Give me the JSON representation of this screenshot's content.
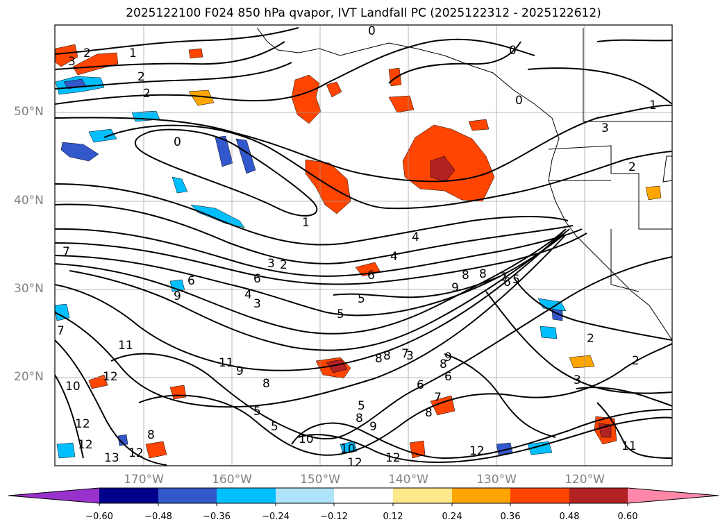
{
  "title": "2025122100 F024 850 hPa qvapor, IVT Landfall PC (2025122312 - 2025122612)",
  "lat_labels": [
    "50°N",
    "40°N",
    "30°N",
    "20°N"
  ],
  "lon_labels": [
    "170°W",
    "160°W",
    "150°W",
    "140°W",
    "130°W",
    "120°W"
  ],
  "colorbar": {
    "ticks": [
      "−0.60",
      "−0.48",
      "−0.36",
      "−0.24",
      "−0.12",
      "0.12",
      "0.24",
      "0.36",
      "0.48",
      "0.60"
    ],
    "colors": [
      "#9932cc",
      "#00008b",
      "#3358cc",
      "#00bfff",
      "#aee3f9",
      "#ffffff",
      "#fde88a",
      "#ffa500",
      "#ff4500",
      "#b22222",
      "#ff88aa"
    ]
  },
  "contour_labels": [
    "2",
    "3",
    "1",
    "2",
    "2",
    "0",
    "0",
    "0",
    "1",
    "2",
    "3",
    "0",
    "1",
    "4",
    "4",
    "3",
    "2",
    "6",
    "6",
    "4",
    "3",
    "5",
    "5",
    "8",
    "9",
    "7",
    "6",
    "7",
    "7",
    "9",
    "11",
    "11",
    "12",
    "10",
    "12",
    "12",
    "13",
    "12",
    "8",
    "5",
    "5",
    "10",
    "9",
    "8",
    "8",
    "7",
    "8",
    "6",
    "12",
    "12",
    "12",
    "10",
    "2",
    "2",
    "3",
    "11",
    "8",
    "9",
    "8",
    "8",
    "7",
    "6",
    "5",
    "9",
    "8",
    "6",
    "5",
    "3"
  ]
}
